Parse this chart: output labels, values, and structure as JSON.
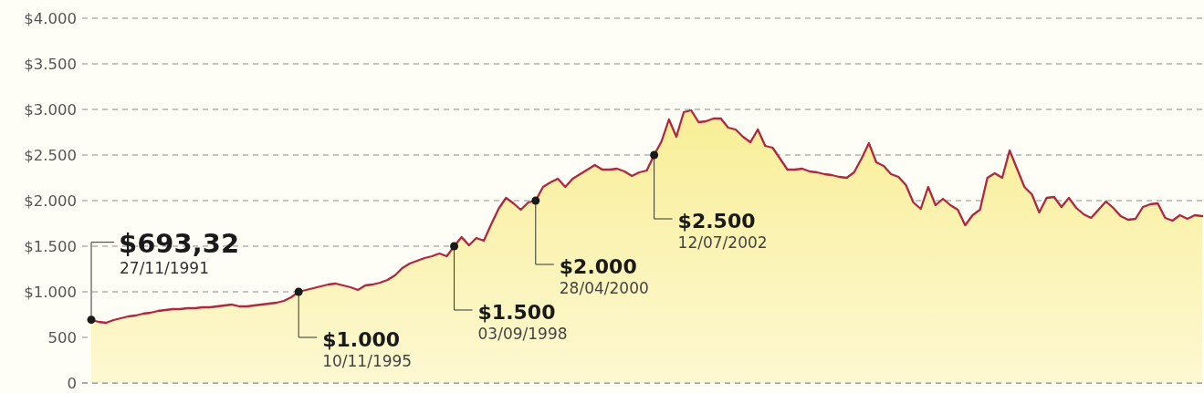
{
  "chart_data": {
    "type": "area",
    "categories": [
      null,
      null,
      null,
      null,
      null,
      null,
      null,
      null,
      null,
      null,
      null,
      null,
      null,
      null,
      null,
      null,
      null,
      null,
      null,
      null,
      null,
      null,
      null,
      null,
      null,
      null,
      null,
      null,
      null,
      null,
      null,
      null,
      null,
      null,
      null,
      null,
      null,
      null,
      null,
      null,
      null,
      null,
      null,
      null,
      null,
      null,
      null,
      null,
      null,
      null,
      null,
      null,
      null,
      null,
      null,
      null,
      null,
      null,
      null,
      null,
      null,
      null,
      null,
      null,
      null,
      null,
      null,
      null,
      null,
      null,
      null,
      null,
      null,
      null,
      null,
      null,
      null,
      null,
      null,
      null,
      null,
      null,
      null,
      null,
      null,
      null,
      null,
      null,
      null,
      null,
      null,
      null,
      null,
      null,
      null,
      null,
      null,
      null,
      null,
      null,
      null,
      null,
      null,
      null,
      null,
      null,
      null,
      null,
      null,
      null,
      null,
      null,
      null,
      null,
      null,
      null,
      null,
      null,
      null,
      null,
      null,
      null,
      null,
      null,
      null,
      null,
      null,
      null,
      null,
      null,
      null,
      null,
      null,
      null,
      null,
      null,
      null,
      null,
      null,
      null,
      null,
      null,
      null,
      null,
      null,
      null,
      null,
      null,
      null,
      null,
      null
    ],
    "series": [
      {
        "color": "#b0283f",
        "values": [
          690,
          670,
          660,
          690,
          710,
          730,
          740,
          760,
          770,
          790,
          800,
          810,
          810,
          820,
          820,
          830,
          830,
          840,
          850,
          860,
          840,
          840,
          850,
          860,
          870,
          880,
          900,
          940,
          1000,
          1020,
          1040,
          1060,
          1080,
          1090,
          1070,
          1050,
          1020,
          1070,
          1080,
          1100,
          1130,
          1180,
          1260,
          1310,
          1340,
          1370,
          1390,
          1420,
          1390,
          1500,
          1600,
          1510,
          1590,
          1560,
          1740,
          1910,
          2030,
          1970,
          1900,
          1980,
          2000,
          2150,
          2200,
          2240,
          2150,
          2240,
          2290,
          2340,
          2390,
          2340,
          2340,
          2350,
          2320,
          2270,
          2310,
          2330,
          2500,
          2650,
          2890,
          2700,
          2970,
          2990,
          2860,
          2870,
          2900,
          2900,
          2800,
          2780,
          2700,
          2640,
          2780,
          2600,
          2580,
          2460,
          2340,
          2340,
          2350,
          2320,
          2310,
          2290,
          2280,
          2260,
          2250,
          2310,
          2460,
          2630,
          2420,
          2380,
          2290,
          2260,
          2170,
          1980,
          1910,
          2150,
          1950,
          2020,
          1950,
          1900,
          1730,
          1840,
          1900,
          2250,
          2300,
          2250,
          2550,
          2350,
          2150,
          2070,
          1870,
          2030,
          2040,
          1930,
          2030,
          1920,
          1850,
          1810,
          1900,
          1990,
          1920,
          1830,
          1790,
          1800,
          1930,
          1960,
          1970,
          1810,
          1780,
          1840,
          1800,
          1840,
          1830
        ]
      },
      {
        "type": "scatter",
        "color": "#1a1a1a",
        "marker": "circle",
        "values": [
          693.32,
          null,
          null,
          null,
          null,
          null,
          null,
          null,
          null,
          null,
          null,
          null,
          null,
          null,
          null,
          null,
          null,
          null,
          null,
          null,
          null,
          null,
          null,
          null,
          null,
          null,
          null,
          null,
          1000,
          null,
          null,
          null,
          null,
          null,
          null,
          null,
          null,
          null,
          null,
          null,
          null,
          null,
          null,
          null,
          null,
          null,
          null,
          null,
          null,
          1500,
          null,
          null,
          null,
          null,
          null,
          null,
          null,
          null,
          null,
          null,
          2000,
          null,
          null,
          null,
          null,
          null,
          null,
          null,
          null,
          null,
          null,
          null,
          null,
          null,
          null,
          null,
          2500,
          null,
          null,
          null,
          null,
          null,
          null,
          null,
          null,
          null,
          null,
          null,
          null,
          null,
          null,
          null,
          null,
          null,
          null,
          null,
          null,
          null,
          null,
          null,
          null,
          null,
          null,
          null,
          null,
          null,
          null,
          null,
          null,
          null,
          null,
          null,
          null,
          null,
          null,
          null,
          null,
          null,
          null,
          null,
          null,
          null,
          null,
          null,
          null,
          null,
          null,
          null,
          null,
          null,
          null,
          null,
          null,
          null,
          null,
          null,
          null,
          null,
          null,
          null,
          null,
          null,
          null,
          null,
          null,
          null,
          null,
          null,
          null,
          null,
          null
        ]
      }
    ],
    "ylim": [
      0,
      4000
    ],
    "yticks": [
      0,
      500,
      {
        "value": 1000,
        "label": "$1.000"
      },
      {
        "value": 1500,
        "label": "$1.500"
      },
      {
        "value": 2000,
        "label": "$2.000"
      },
      {
        "value": 2500,
        "label": "$2.500"
      },
      {
        "value": 3000,
        "label": "$3.000"
      },
      {
        "value": 3500,
        "label": "$3.500"
      },
      {
        "value": 4000,
        "label": "$4.000"
      }
    ],
    "grid": "y",
    "tick_labels": "y",
    "annotations": [
      "$693,32\n27/11/1991",
      "$1.000\n10/11/1995",
      "$1.500\n03/09/1998",
      "$2.000\n28/04/2000",
      "$2.500\n12/07/2002"
    ]
  }
}
